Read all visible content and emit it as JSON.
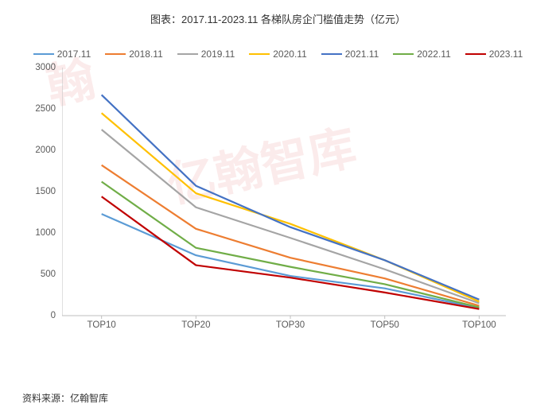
{
  "title": "图表：2017.11-2023.11 各梯队房企门槛值走势（亿元）",
  "source": "资料来源：亿翰智库",
  "watermark1": "翰",
  "watermark2": "亿翰智库",
  "chart": {
    "type": "line",
    "background_color": "#ffffff",
    "axis_color": "#bfbfbf",
    "tick_color": "#bfbfbf",
    "label_color": "#595959",
    "label_fontsize": 11.5,
    "line_width": 2.2,
    "ylim": [
      0,
      3000
    ],
    "ytick_step": 500,
    "yticks": [
      0,
      500,
      1000,
      1500,
      2000,
      2500,
      3000
    ],
    "categories": [
      "TOP10",
      "TOP20",
      "TOP30",
      "TOP50",
      "TOP100"
    ],
    "series": [
      {
        "name": "2017.11",
        "color": "#5b9bd5",
        "values": [
          1230,
          730,
          480,
          330,
          90
        ]
      },
      {
        "name": "2018.11",
        "color": "#ed7d31",
        "values": [
          1820,
          1050,
          700,
          450,
          120
        ]
      },
      {
        "name": "2019.11",
        "color": "#a5a5a5",
        "values": [
          2250,
          1310,
          940,
          560,
          150
        ]
      },
      {
        "name": "2020.11",
        "color": "#ffc000",
        "values": [
          2450,
          1480,
          1110,
          670,
          170
        ]
      },
      {
        "name": "2021.11",
        "color": "#4472c4",
        "values": [
          2670,
          1570,
          1070,
          670,
          195
        ]
      },
      {
        "name": "2022.11",
        "color": "#70ad47",
        "values": [
          1620,
          820,
          590,
          380,
          100
        ]
      },
      {
        "name": "2023.11",
        "color": "#c00000",
        "values": [
          1440,
          610,
          460,
          280,
          80
        ]
      }
    ]
  }
}
